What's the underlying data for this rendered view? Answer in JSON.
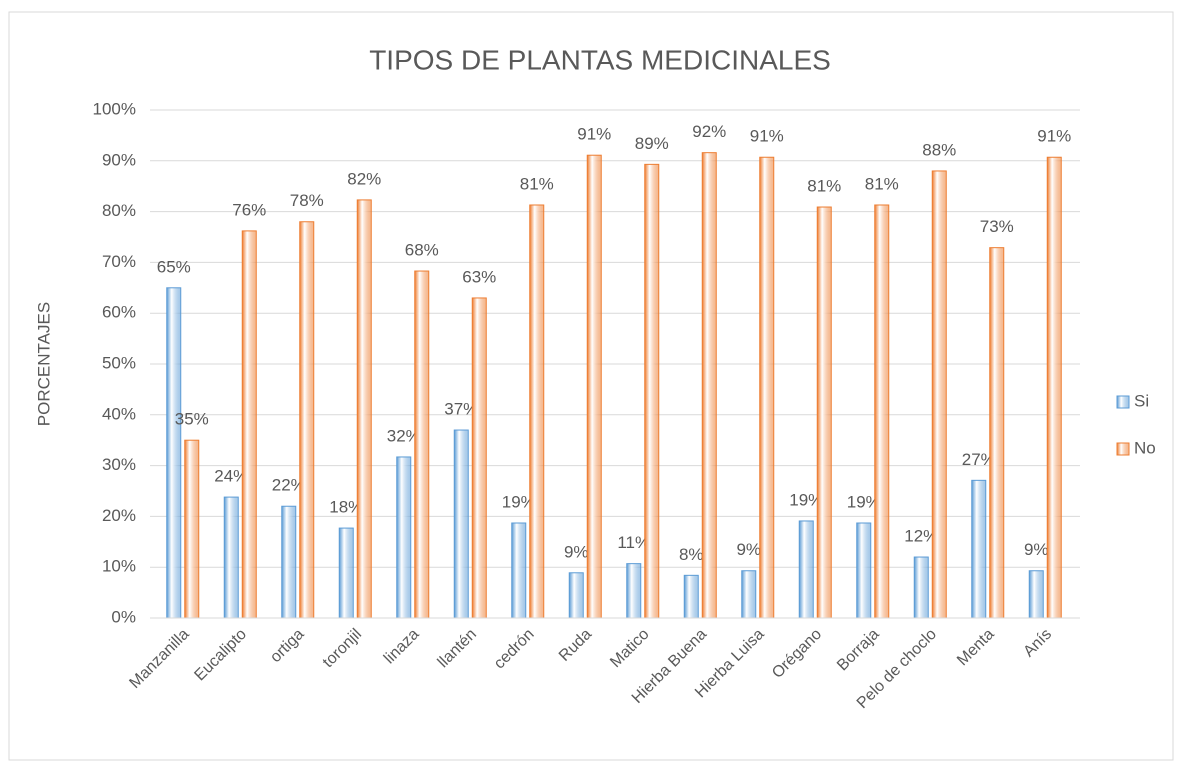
{
  "chart_data": {
    "type": "bar",
    "title": "TIPOS DE PLANTAS MEDICINALES",
    "y_label": "PORCENTAJES",
    "categories": [
      "Manzanilla",
      "Eucalipto",
      "ortiga",
      "toronjil",
      "linaza",
      "llantén",
      "cedrón",
      "Ruda",
      "Matico",
      "Hierba Buena",
      "Hierba Luisa",
      "Orégano",
      "Borraja",
      "Pelo de choclo",
      "Menta",
      "Anís"
    ],
    "series": [
      {
        "name": "Si",
        "color": "#5b9bd5",
        "values": [
          65,
          23.8,
          22,
          17.7,
          31.7,
          37,
          18.7,
          8.9,
          10.7,
          8.4,
          9.3,
          19.1,
          18.7,
          12,
          27.1,
          9.3
        ],
        "value_labels": [
          "65%",
          "24%",
          "22%",
          "18%",
          "32%",
          "37%",
          "19%",
          "9%",
          "11%",
          "8%",
          "9%",
          "19%",
          "19%",
          "12%",
          "27%",
          "9%"
        ]
      },
      {
        "name": "No",
        "color": "#ed7d31",
        "values": [
          35,
          76.2,
          78,
          82.3,
          68.3,
          63,
          81.3,
          91.1,
          89.3,
          91.6,
          90.7,
          80.9,
          81.3,
          88,
          72.9,
          90.7
        ],
        "value_labels": [
          "35%",
          "76%",
          "78%",
          "82%",
          "68%",
          "63%",
          "81%",
          "91%",
          "89%",
          "92%",
          "91%",
          "81%",
          "81%",
          "88%",
          "73%",
          "91%"
        ]
      }
    ],
    "ylim": [
      0,
      100
    ],
    "yticks": [
      {
        "value": 0,
        "label": "0%"
      },
      {
        "value": 10,
        "label": "10%"
      },
      {
        "value": 20,
        "label": "20%"
      },
      {
        "value": 30,
        "label": "30%"
      },
      {
        "value": 40,
        "label": "40%"
      },
      {
        "value": 50,
        "label": "50%"
      },
      {
        "value": 60,
        "label": "60%"
      },
      {
        "value": 70,
        "label": "70%"
      },
      {
        "value": 80,
        "label": "80%"
      },
      {
        "value": 90,
        "label": "90%"
      },
      {
        "value": 100,
        "label": "100%"
      }
    ],
    "grid": true,
    "legend": "right"
  }
}
